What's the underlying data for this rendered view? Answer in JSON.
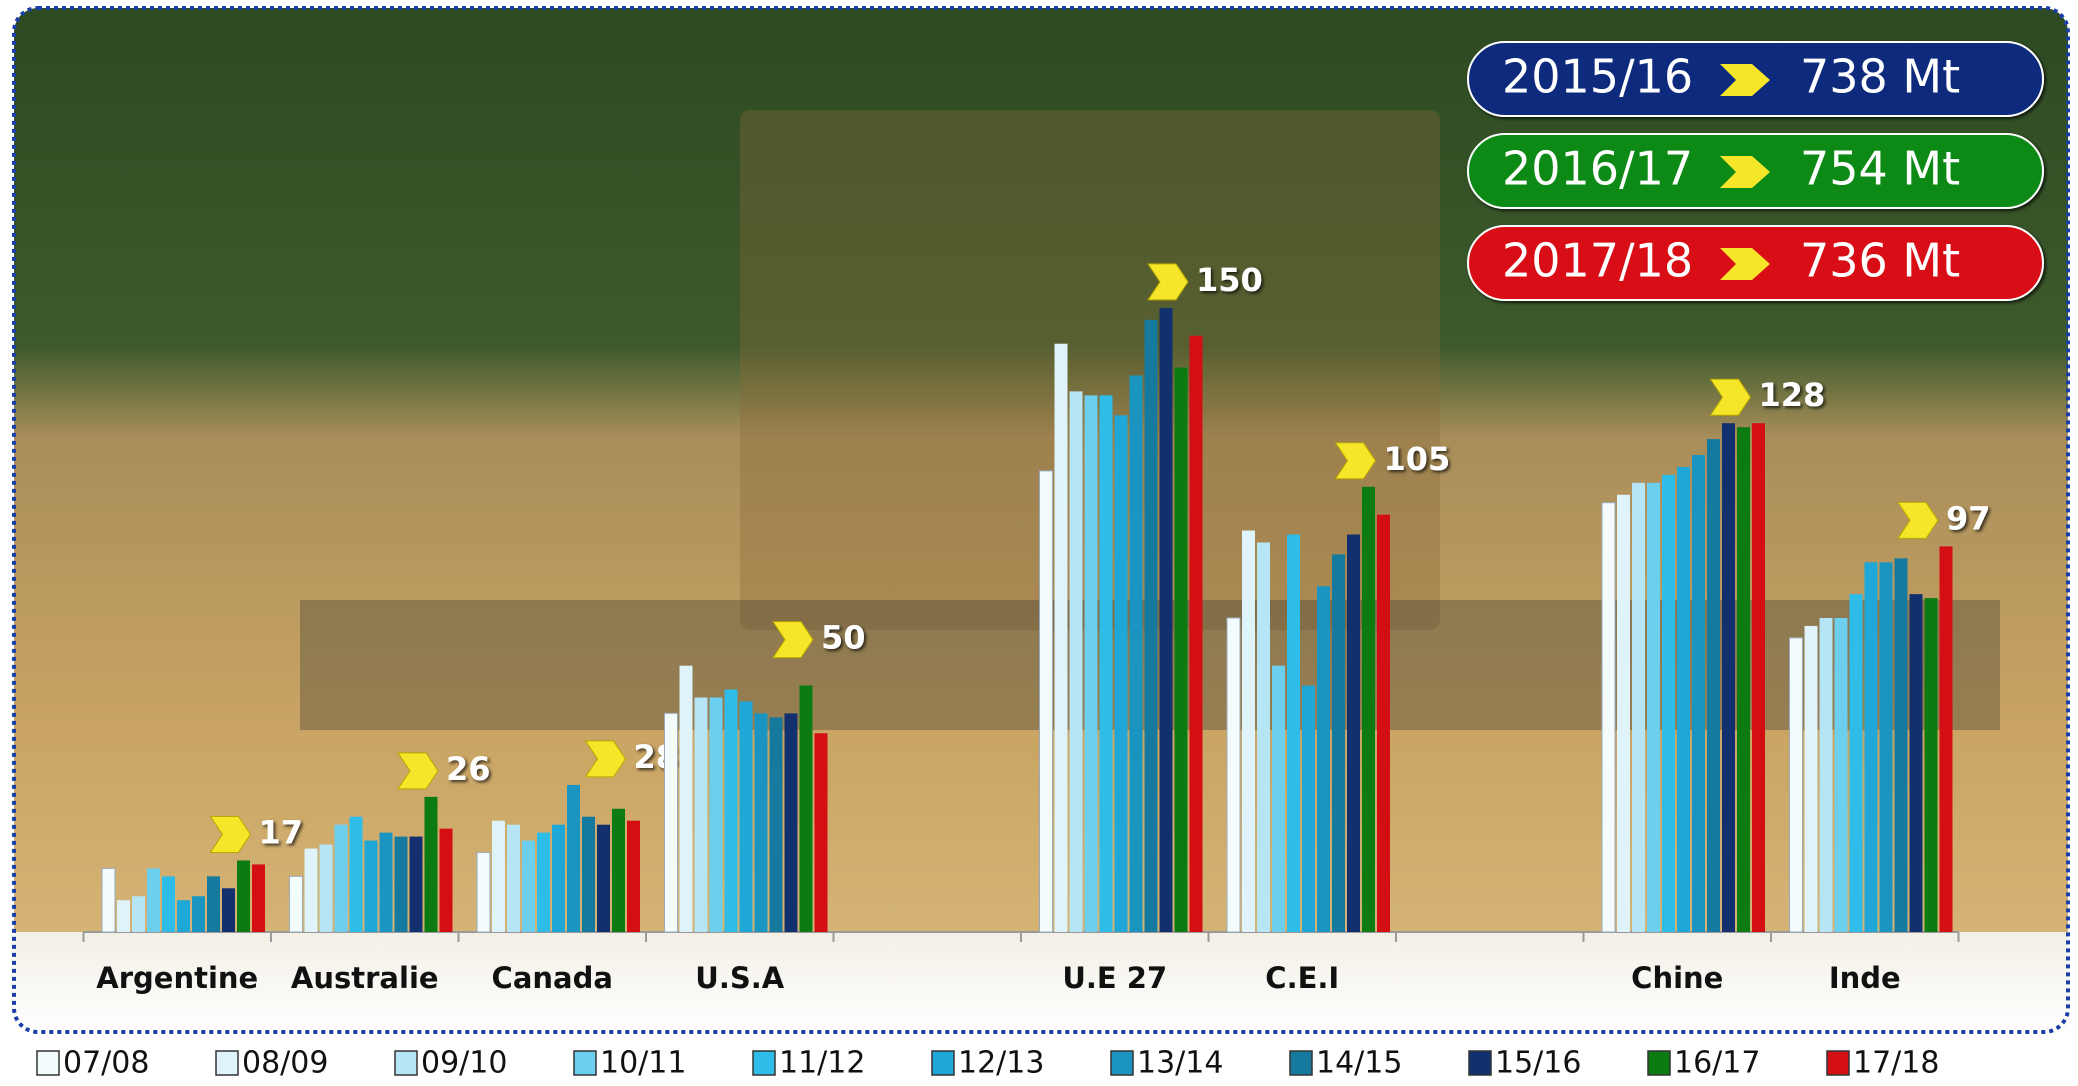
{
  "chart_data": {
    "type": "bar",
    "categories": [
      "Argentine",
      "Australie",
      "Canada",
      "U.S.A",
      null,
      "U.E 27",
      "C.E.I",
      null,
      "Chine",
      "Inde"
    ],
    "series": [
      {
        "name": "07/08",
        "color": "#f4fbfd",
        "values": [
          16,
          14,
          20,
          55,
          null,
          116,
          79,
          null,
          108,
          74
        ]
      },
      {
        "name": "08/09",
        "color": "#def3fa",
        "values": [
          8,
          21,
          28,
          67,
          null,
          148,
          101,
          null,
          110,
          77
        ]
      },
      {
        "name": "09/10",
        "color": "#b6e5f5",
        "values": [
          9,
          22,
          27,
          59,
          null,
          136,
          98,
          null,
          113,
          79
        ]
      },
      {
        "name": "10/11",
        "color": "#6dcfee",
        "values": [
          16,
          27,
          23,
          59,
          null,
          135,
          67,
          null,
          113,
          79
        ]
      },
      {
        "name": "11/12",
        "color": "#2ebce8",
        "values": [
          14,
          29,
          25,
          61,
          null,
          135,
          100,
          null,
          115,
          85
        ]
      },
      {
        "name": "12/13",
        "color": "#1fa8d7",
        "values": [
          8,
          23,
          27,
          58,
          null,
          130,
          62,
          null,
          117,
          93
        ]
      },
      {
        "name": "13/14",
        "color": "#1a95c1",
        "values": [
          9,
          25,
          37,
          55,
          null,
          140,
          87,
          null,
          120,
          93
        ]
      },
      {
        "name": "14/15",
        "color": "#16799e",
        "values": [
          14,
          24,
          29,
          54,
          null,
          154,
          95,
          null,
          124,
          94
        ]
      },
      {
        "name": "15/16",
        "color": "#13306e",
        "values": [
          11,
          24,
          27,
          55,
          null,
          157,
          100,
          null,
          128,
          85
        ]
      },
      {
        "name": "16/17",
        "color": "#0b7b12",
        "values": [
          18,
          34,
          31,
          62,
          null,
          142,
          112,
          null,
          127,
          84
        ]
      },
      {
        "name": "17/18",
        "color": "#d40f14",
        "values": [
          17,
          26,
          28,
          50,
          null,
          150,
          105,
          null,
          128,
          97
        ]
      }
    ],
    "annotations": [
      {
        "label": "2015/16",
        "value": "738 Mt",
        "color": "#0c2c7c"
      },
      {
        "label": "2016/17",
        "value": "754 Mt",
        "color": "#0a8a12"
      },
      {
        "label": "2017/18",
        "value": "736 Mt",
        "color": "#d80f14"
      }
    ]
  }
}
